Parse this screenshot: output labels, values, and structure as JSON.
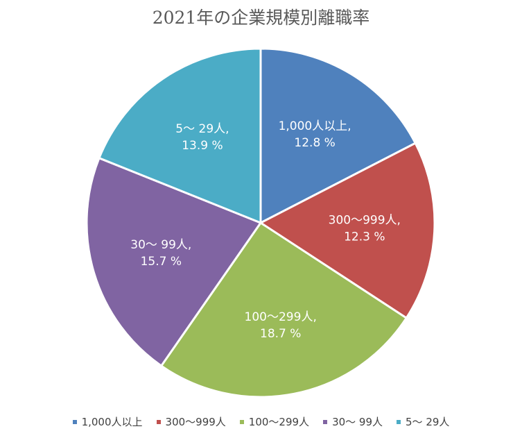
{
  "chart_data": {
    "type": "pie",
    "title": "2021年の企業規模別離職率",
    "unit": "%",
    "slices": [
      {
        "name": "1,000人以上",
        "label": "1,000人以上,",
        "value": 12.8,
        "display": "12.8 %",
        "color": "#4f81bd"
      },
      {
        "name": "300～999人",
        "label": "300～999人,",
        "value": 12.3,
        "display": "12.3 %",
        "color": "#c0504d"
      },
      {
        "name": "100～299人",
        "label": "100～299人,",
        "value": 18.7,
        "display": "18.7 %",
        "color": "#9bbb59"
      },
      {
        "name": "30～ 99人",
        "label": "30～ 99人,",
        "value": 15.7,
        "display": "15.7 %",
        "color": "#8064a2"
      },
      {
        "name": "5～ 29人",
        "label": "5～ 29人,",
        "value": 13.9,
        "display": "13.9 %",
        "color": "#4bacc6"
      }
    ],
    "legend_position": "bottom"
  }
}
